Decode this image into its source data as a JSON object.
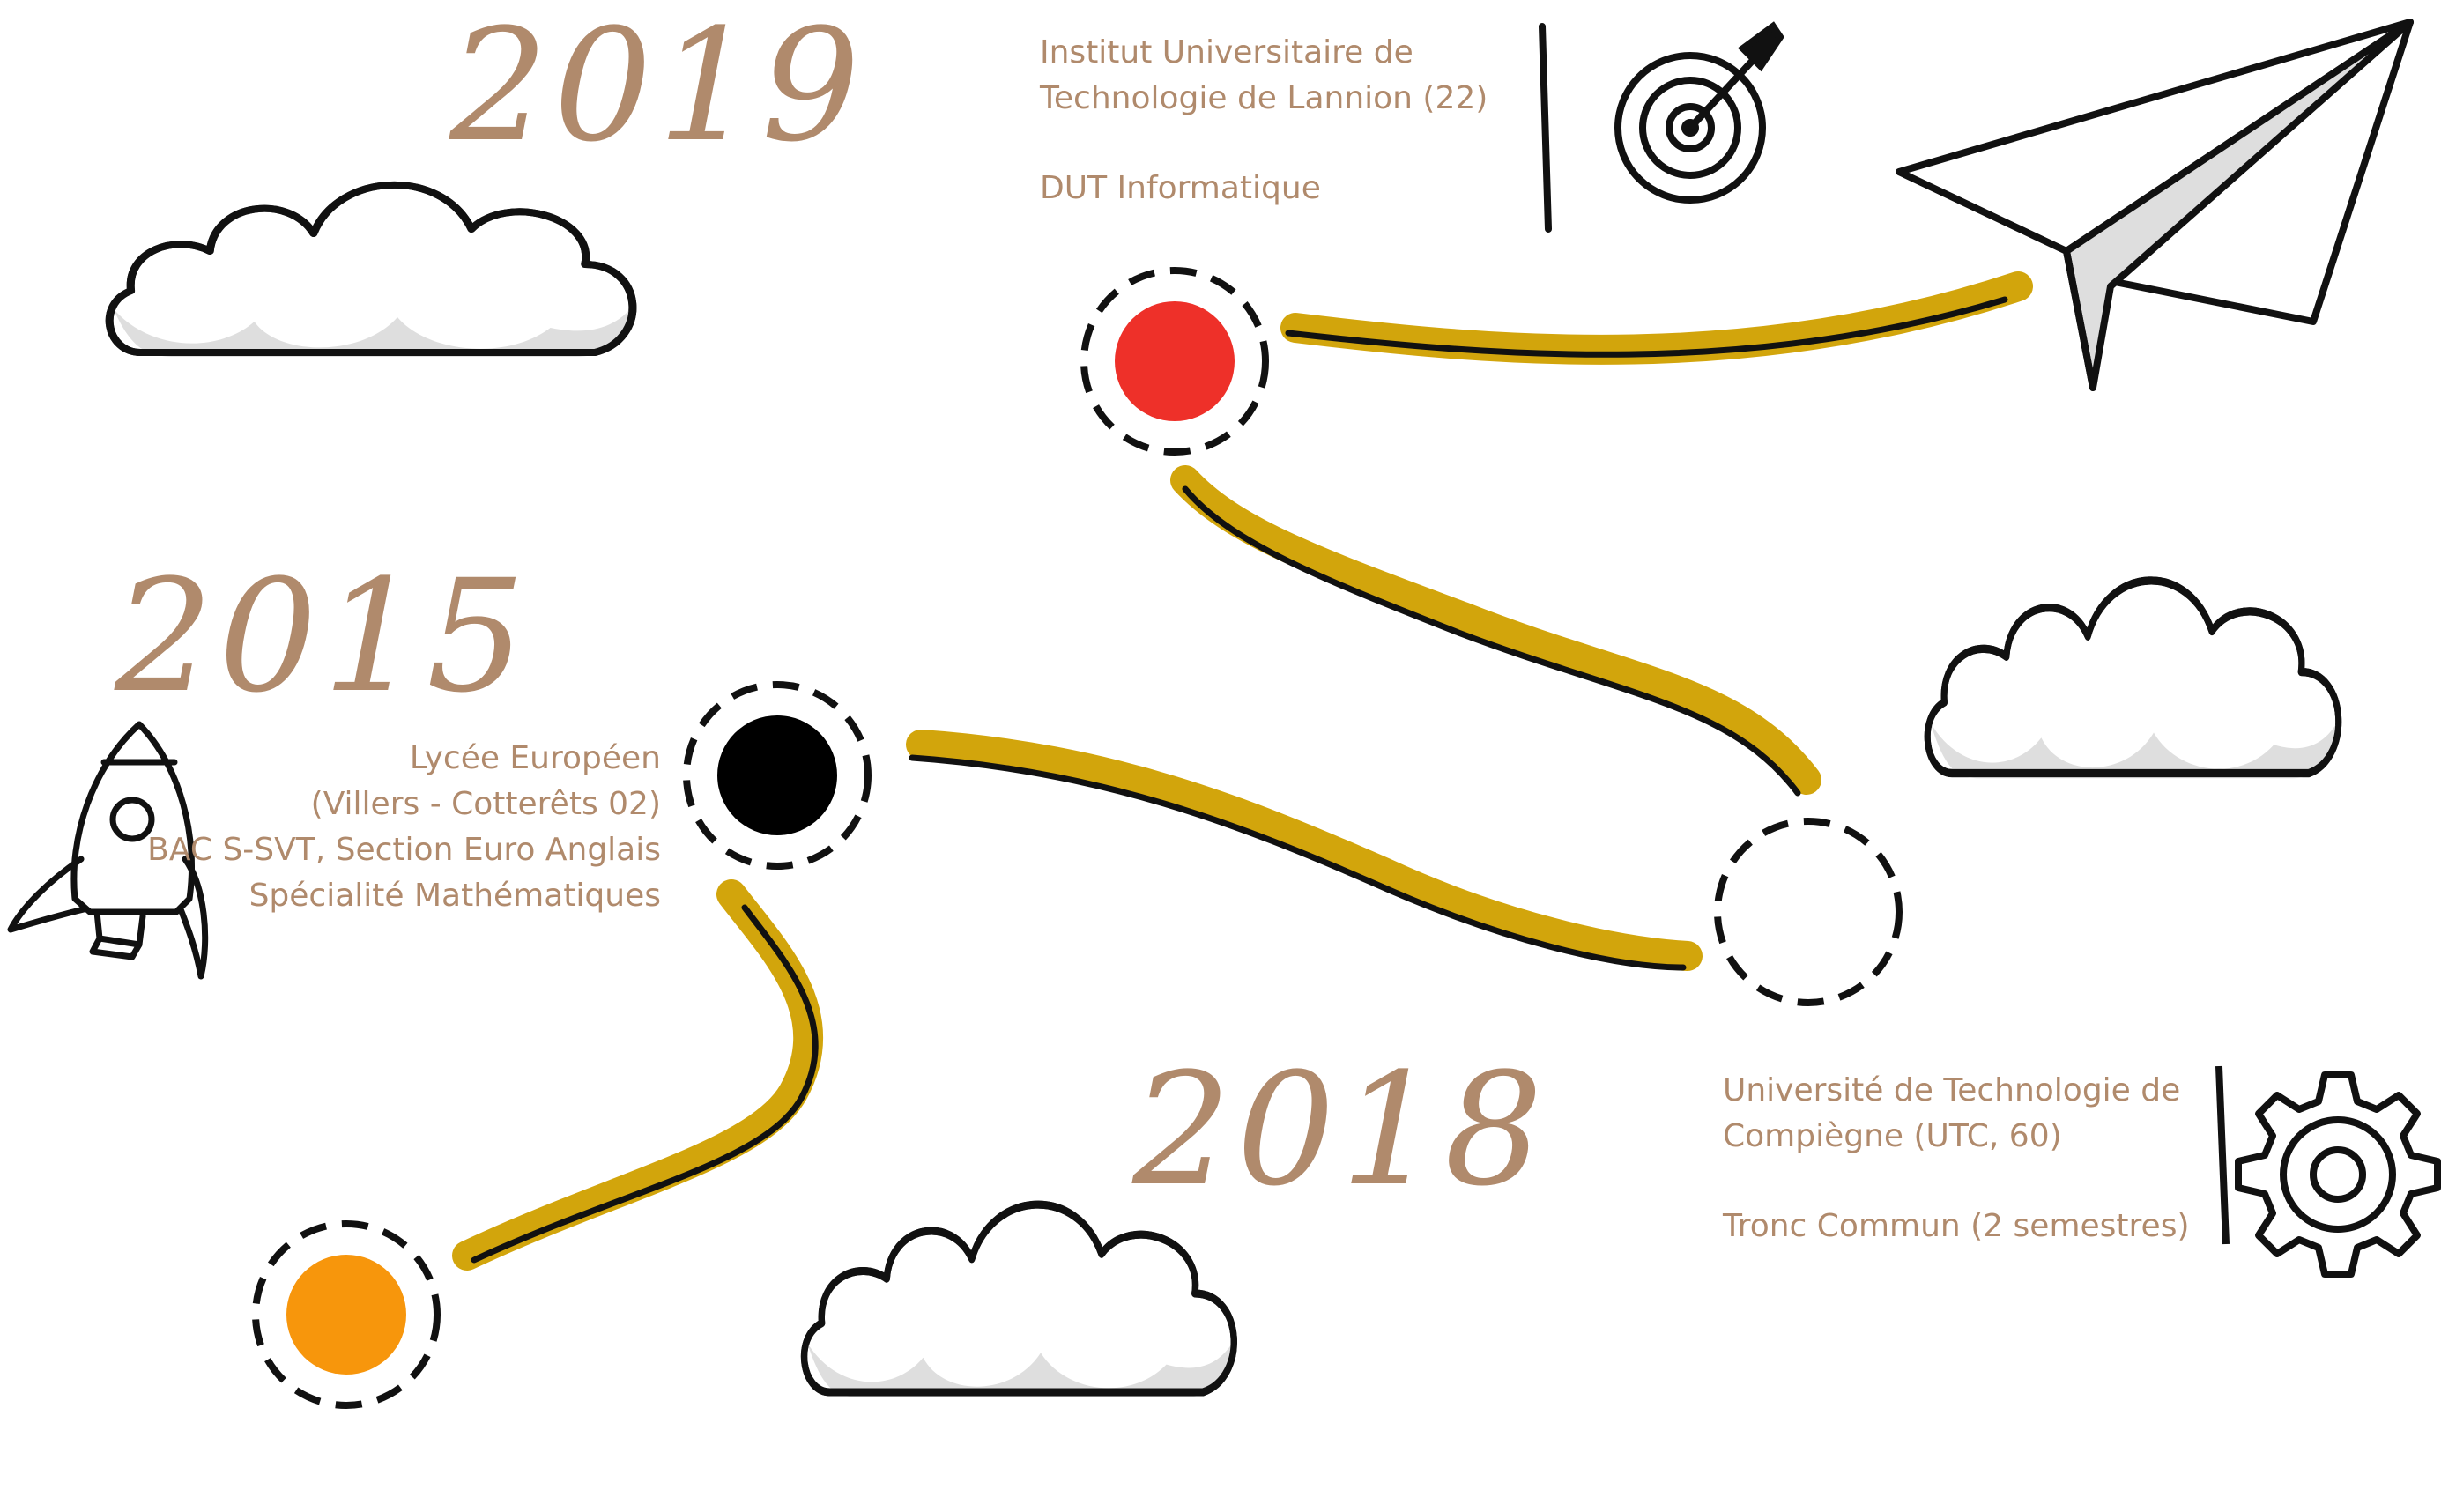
{
  "colors": {
    "text": "#b08a6c",
    "path": "#d2a50c",
    "ink": "#111111",
    "dot_2019": "#ee3029",
    "dot_2015": "#000000",
    "dot_start": "#f7960c",
    "cloud_shadow": "#dedede"
  },
  "milestones": {
    "y2019": {
      "year": "2019",
      "school_line1": "Institut Universitaire de",
      "school_line2": "Technologie de Lannion (22)",
      "degree": "DUT Informatique",
      "icon": "target-icon"
    },
    "y2015": {
      "year": "2015",
      "line1": "Lycée Européen",
      "line2": "(Villers - Cotterêts 02)",
      "line3": "BAC S-SVT, Section Euro Anglais",
      "line4": "Spécialité Mathématiques",
      "icon": "rocket-icon"
    },
    "y2018": {
      "year": "2018",
      "school_line1": "Université de Technologie de",
      "school_line2": "Compiègne (UTC, 60)",
      "degree": "Tronc Commun (2 semestres)",
      "icon": "gear-icon"
    }
  },
  "decorations": [
    "cloud-icon",
    "paper-plane-icon",
    "rocket-icon",
    "target-icon",
    "gear-icon"
  ]
}
